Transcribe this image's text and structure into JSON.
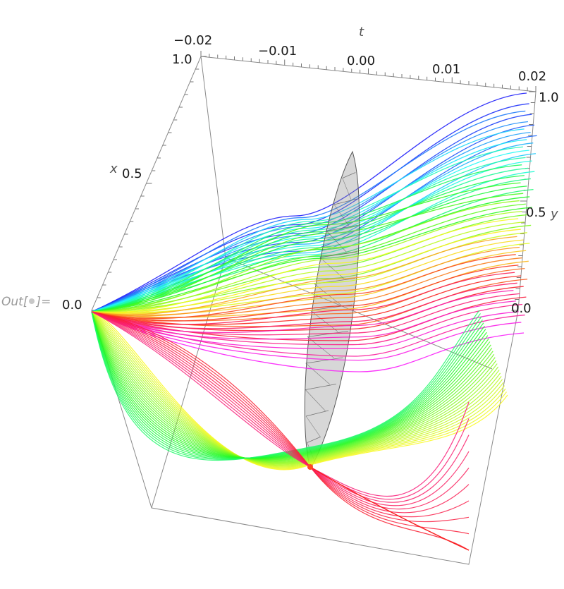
{
  "out_label": {
    "prefix": "Out[",
    "suffix": "]="
  },
  "chart_data": {
    "type": "line",
    "style": "3D parametric curve bundle (many rainbow-colored trajectories) with a grey translucent mesh surface at t = 0",
    "axes": {
      "t": {
        "label": "t",
        "range": [
          -0.02,
          0.02
        ],
        "ticks": [
          "−0.02",
          "−0.01",
          "0.00",
          "0.01",
          "0.02"
        ]
      },
      "x": {
        "label": "x",
        "range": [
          0.0,
          1.0
        ],
        "ticks": [
          "0.0",
          "0.5",
          "1.0"
        ]
      },
      "y": {
        "label": "y",
        "range": [
          0.0,
          1.0
        ],
        "ticks": [
          "0.0",
          "0.5",
          "1.0"
        ]
      }
    },
    "grid": false,
    "colors": {
      "upper_family": "#3030e0",
      "mid_family": "#d040d0",
      "lower_family": "#40e040",
      "accent": "#ff3030",
      "surface": "#9a9a9a"
    }
  }
}
